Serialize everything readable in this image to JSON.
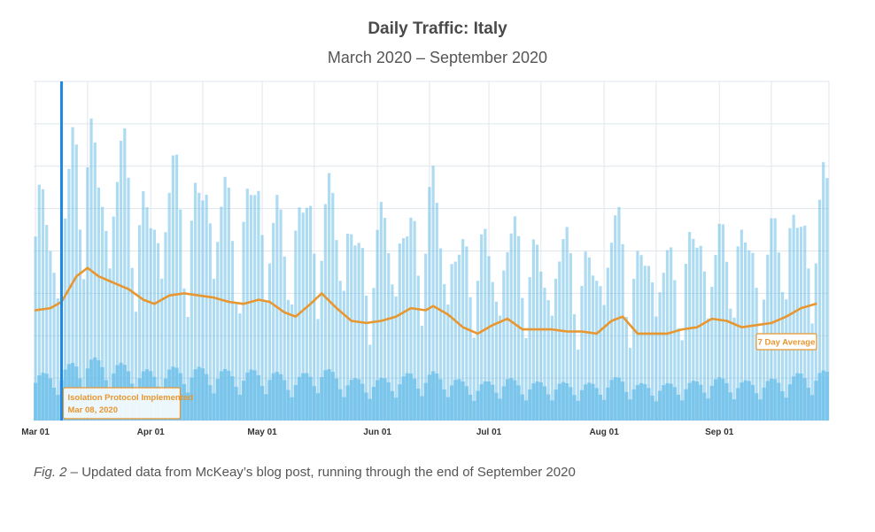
{
  "colors": {
    "bar": "#69bde8",
    "average": "#e8962f",
    "event_line": "#1e88e5",
    "grid": "#dfe6ec"
  },
  "caption": {
    "prefix": "Fig. 2 –",
    "text": "Updated data from McKeay’s blog post, running through the end of September 2020"
  },
  "chart_data": {
    "type": "bar",
    "title": "Daily Traffic: Italy",
    "subtitle": "March 2020 – September 2020",
    "xlabel": "",
    "ylabel": "",
    "x_range": [
      "2020-03-01",
      "2020-09-30"
    ],
    "x_ticks": [
      "Mar 01",
      "Apr 01",
      "May 01",
      "Jun 01",
      "Jul 01",
      "Aug 01",
      "Sep 01"
    ],
    "y_range": [
      0,
      8
    ],
    "y_tick_labels": "none",
    "grid": true,
    "bar_values_note": "dense daily bars; heights approximated by a weekly cycle on top of the 7-day average",
    "series": [
      {
        "name": "7 Day Average",
        "points": [
          [
            "2020-03-01",
            2.6
          ],
          [
            "2020-03-05",
            2.65
          ],
          [
            "2020-03-08",
            2.8
          ],
          [
            "2020-03-12",
            3.4
          ],
          [
            "2020-03-15",
            3.6
          ],
          [
            "2020-03-18",
            3.4
          ],
          [
            "2020-03-22",
            3.25
          ],
          [
            "2020-03-26",
            3.1
          ],
          [
            "2020-03-30",
            2.85
          ],
          [
            "2020-04-02",
            2.75
          ],
          [
            "2020-04-06",
            2.95
          ],
          [
            "2020-04-10",
            3.0
          ],
          [
            "2020-04-14",
            2.95
          ],
          [
            "2020-04-18",
            2.9
          ],
          [
            "2020-04-22",
            2.8
          ],
          [
            "2020-04-26",
            2.75
          ],
          [
            "2020-04-30",
            2.85
          ],
          [
            "2020-05-03",
            2.8
          ],
          [
            "2020-05-07",
            2.55
          ],
          [
            "2020-05-10",
            2.45
          ],
          [
            "2020-05-14",
            2.75
          ],
          [
            "2020-05-17",
            3.0
          ],
          [
            "2020-05-21",
            2.65
          ],
          [
            "2020-05-25",
            2.35
          ],
          [
            "2020-05-29",
            2.3
          ],
          [
            "2020-06-02",
            2.35
          ],
          [
            "2020-06-06",
            2.45
          ],
          [
            "2020-06-10",
            2.65
          ],
          [
            "2020-06-14",
            2.6
          ],
          [
            "2020-06-16",
            2.7
          ],
          [
            "2020-06-20",
            2.5
          ],
          [
            "2020-06-24",
            2.2
          ],
          [
            "2020-06-28",
            2.05
          ],
          [
            "2020-07-02",
            2.25
          ],
          [
            "2020-07-06",
            2.4
          ],
          [
            "2020-07-10",
            2.15
          ],
          [
            "2020-07-14",
            2.15
          ],
          [
            "2020-07-18",
            2.15
          ],
          [
            "2020-07-22",
            2.1
          ],
          [
            "2020-07-26",
            2.1
          ],
          [
            "2020-07-30",
            2.05
          ],
          [
            "2020-08-03",
            2.35
          ],
          [
            "2020-08-06",
            2.45
          ],
          [
            "2020-08-10",
            2.05
          ],
          [
            "2020-08-14",
            2.05
          ],
          [
            "2020-08-18",
            2.05
          ],
          [
            "2020-08-22",
            2.15
          ],
          [
            "2020-08-26",
            2.2
          ],
          [
            "2020-08-30",
            2.4
          ],
          [
            "2020-09-03",
            2.35
          ],
          [
            "2020-09-07",
            2.2
          ],
          [
            "2020-09-11",
            2.25
          ],
          [
            "2020-09-15",
            2.3
          ],
          [
            "2020-09-19",
            2.45
          ],
          [
            "2020-09-23",
            2.65
          ],
          [
            "2020-09-27",
            2.75
          ]
        ]
      }
    ],
    "annotations": [
      {
        "type": "vline",
        "x": "2020-03-08",
        "label": "Isolation Protocol Implemented",
        "sublabel": "Mar 08, 2020",
        "placement": "bottom-left"
      },
      {
        "type": "label",
        "text": "7 Day Average",
        "placement": "bottom-right"
      }
    ]
  }
}
